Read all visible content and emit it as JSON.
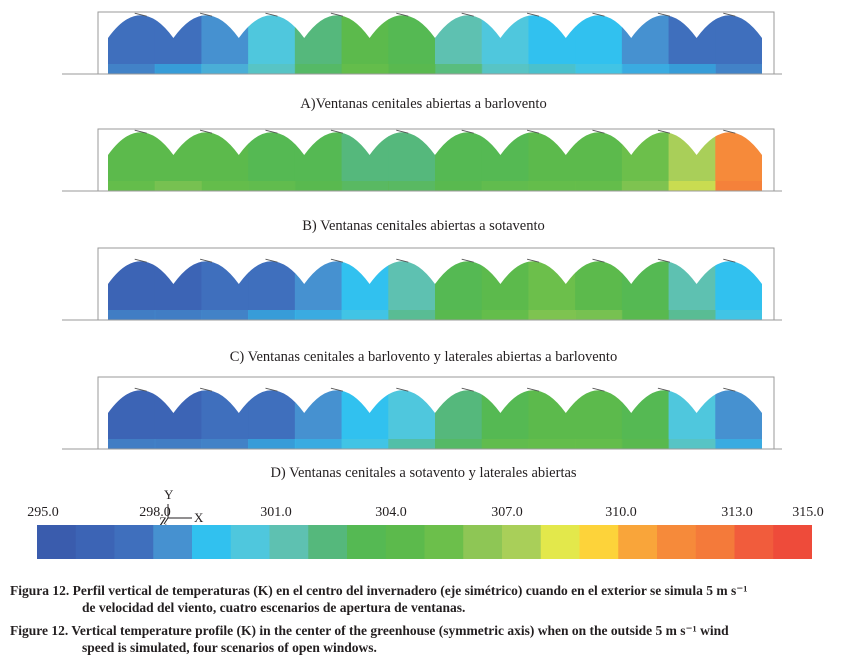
{
  "chart_data": {
    "type": "heatmap",
    "panels": [
      {
        "id": "A",
        "caption": "A)Ventanas cenitales abiertas a barlovento",
        "profile": [
          297,
          297.5,
          298.5,
          300,
          302,
          304,
          303,
          301.5,
          300,
          299.5,
          299,
          298,
          297.5,
          297
        ]
      },
      {
        "id": "B",
        "caption": "B) Ventanas cenitales abiertas a sotavento",
        "profile": [
          304,
          304.5,
          304,
          303.5,
          303,
          302.5,
          302.5,
          303,
          303.5,
          304,
          304,
          305,
          307,
          311
        ]
      },
      {
        "id": "C",
        "caption": "C) Ventanas cenitales a barlovento y laterales abiertas a barlovento",
        "profile": [
          296.5,
          296.5,
          297,
          297.5,
          298,
          299,
          301,
          303,
          304,
          305,
          304.5,
          303,
          301,
          299
        ]
      },
      {
        "id": "D",
        "caption": "D) Ventanas cenitales a sotavento y laterales abiertas",
        "profile": [
          296.5,
          296.5,
          297,
          297.5,
          298,
          299,
          300.5,
          302,
          303.5,
          304,
          304,
          303,
          300,
          298
        ]
      }
    ],
    "colorbar": {
      "tick_labels": [
        "295.0",
        "298.0",
        "301.0",
        "304.0",
        "307.0",
        "310.0",
        "313.0",
        "315.0"
      ],
      "tick_values": [
        295,
        298,
        301,
        304,
        307,
        310,
        313,
        315
      ],
      "range": [
        295,
        315
      ],
      "colors": [
        "#3a5cad",
        "#3c64b5",
        "#3f6fbd",
        "#4691d0",
        "#31c1ef",
        "#4fc7dd",
        "#5ec1b1",
        "#55b87c",
        "#55b953",
        "#5cba4c",
        "#6cbf4b",
        "#8ec655",
        "#a9cf59",
        "#e3e84b",
        "#fdd33a",
        "#f9a53a",
        "#f68a3a",
        "#f47a3a",
        "#f15c3c",
        "#ee4b3a"
      ]
    },
    "axes_indicator": {
      "y": "Y",
      "x": "X",
      "z": "Z"
    }
  },
  "figure_caption_es": {
    "label": "Figura 12.",
    "line1": " Perfil vertical de temperaturas (K) en el centro del invernadero (eje simétrico) cuando en el exterior se simula 5 m s⁻¹",
    "line2": "de velocidad del viento, cuatro escenarios de apertura de ventanas."
  },
  "figure_caption_en": {
    "label": "Figure 12.",
    "line1": " Vertical temperature profile (K) in the center of the greenhouse (symmetric axis) when on the outside 5 m s⁻¹ wind",
    "line2": "speed is simulated, four scenarios of open windows."
  }
}
